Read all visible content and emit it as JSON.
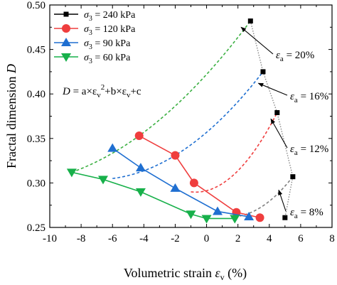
{
  "chart_data": {
    "type": "scatter",
    "xlabel": "Volumetric strain",
    "xlabel_symbol": "ε",
    "xlabel_sub": "v",
    "xlabel_unit": "(%)",
    "ylabel": "Fractal dimension",
    "ylabel_symbol": "D",
    "xlim": [
      -10,
      8
    ],
    "ylim": [
      0.25,
      0.5
    ],
    "xticks": [
      -10,
      -8,
      -6,
      -4,
      -2,
      0,
      2,
      4,
      6,
      8
    ],
    "yticks": [
      0.25,
      0.3,
      0.35,
      0.4,
      0.45,
      0.5
    ],
    "xtick_labels": [
      "-10",
      "-8",
      "-6",
      "-4",
      "-2",
      "0",
      "2",
      "4",
      "6",
      "8"
    ],
    "ytick_labels": [
      "0.25",
      "0.30",
      "0.35",
      "0.40",
      "0.45",
      "0.50"
    ],
    "grid": false,
    "legend_position": "top-left",
    "series": [
      {
        "name": "σ3 = 240 kPa",
        "legend_prefix": "σ",
        "legend_sub": "3",
        "legend_value": "= 240 kPa",
        "color": "#000000",
        "marker": "square",
        "points": [
          [
            2.8,
            0.482
          ],
          [
            3.6,
            0.425
          ],
          [
            4.5,
            0.379
          ],
          [
            5.5,
            0.307
          ],
          [
            5.0,
            0.261
          ]
        ]
      },
      {
        "name": "σ3 = 120 kPa",
        "legend_prefix": "σ",
        "legend_sub": "3",
        "legend_value": "= 120 kPa",
        "color": "#ef3e3e",
        "marker": "circle",
        "points": [
          [
            -4.3,
            0.353
          ],
          [
            -2.0,
            0.331
          ],
          [
            -0.8,
            0.3
          ],
          [
            1.9,
            0.267
          ],
          [
            3.4,
            0.261
          ]
        ]
      },
      {
        "name": "σ3 = 90 kPa",
        "legend_prefix": "σ",
        "legend_sub": "3",
        "legend_value": "= 90 kPa",
        "color": "#1f6fd1",
        "marker": "triangle-up",
        "points": [
          [
            -6.0,
            0.339
          ],
          [
            -4.2,
            0.317
          ],
          [
            -2.0,
            0.294
          ],
          [
            0.7,
            0.268
          ],
          [
            2.7,
            0.262
          ]
        ]
      },
      {
        "name": "σ3 = 60 kPa",
        "legend_prefix": "σ",
        "legend_sub": "3",
        "legend_value": "= 60 kPa",
        "color": "#17b04a",
        "marker": "triangle-down",
        "points": [
          [
            -8.6,
            0.312
          ],
          [
            -6.6,
            0.304
          ],
          [
            -4.2,
            0.29
          ],
          [
            -1.0,
            0.265
          ],
          [
            0.0,
            0.26
          ],
          [
            1.8,
            0.26
          ]
        ]
      }
    ],
    "fit_curves": [
      {
        "label": "εa = 20%",
        "color": "#3cb043",
        "from": [
          -8.6,
          0.312
        ],
        "through": [
          -4.3,
          0.353
        ],
        "to": [
          2.8,
          0.482
        ]
      },
      {
        "label": "εa = 16%",
        "color": "#1f6fd1",
        "from": [
          -6.0,
          0.305
        ],
        "through": [
          -2.0,
          0.331
        ],
        "to": [
          3.6,
          0.425
        ]
      },
      {
        "label": "εa = 12%",
        "color": "#ef3e3e",
        "from": [
          -1.0,
          0.29
        ],
        "through": [
          1.9,
          0.312
        ],
        "to": [
          4.5,
          0.379
        ]
      },
      {
        "label": "εa = 8%",
        "color": "#808080",
        "from": [
          1.8,
          0.262
        ],
        "through": [
          3.4,
          0.272
        ],
        "to": [
          5.5,
          0.307
        ]
      }
    ],
    "envelope_curve": {
      "color": "#888888",
      "points": [
        [
          2.8,
          0.482
        ],
        [
          3.6,
          0.425
        ],
        [
          4.5,
          0.379
        ],
        [
          5.5,
          0.307
        ],
        [
          5.0,
          0.261
        ]
      ]
    },
    "equation": {
      "lhs": "D",
      "rhs_1": " = a×ε",
      "sub_1": "v",
      "sup_1": "2",
      "rhs_2": "+b×ε",
      "sub_2": "v",
      "rhs_3": "+c"
    },
    "annotations": [
      {
        "symbol": "ε",
        "sub": "a",
        "value": " = 20%",
        "arrow_to": [
          2.2,
          0.475
        ]
      },
      {
        "symbol": "ε",
        "sub": "a",
        "value": " = 16%",
        "arrow_to": [
          3.3,
          0.412
        ]
      },
      {
        "symbol": "ε",
        "sub": "a",
        "value": " = 12%",
        "arrow_to": [
          4.1,
          0.372
        ]
      },
      {
        "symbol": "ε",
        "sub": "a",
        "value": " = 8%",
        "arrow_to": [
          4.6,
          0.292
        ]
      }
    ]
  }
}
